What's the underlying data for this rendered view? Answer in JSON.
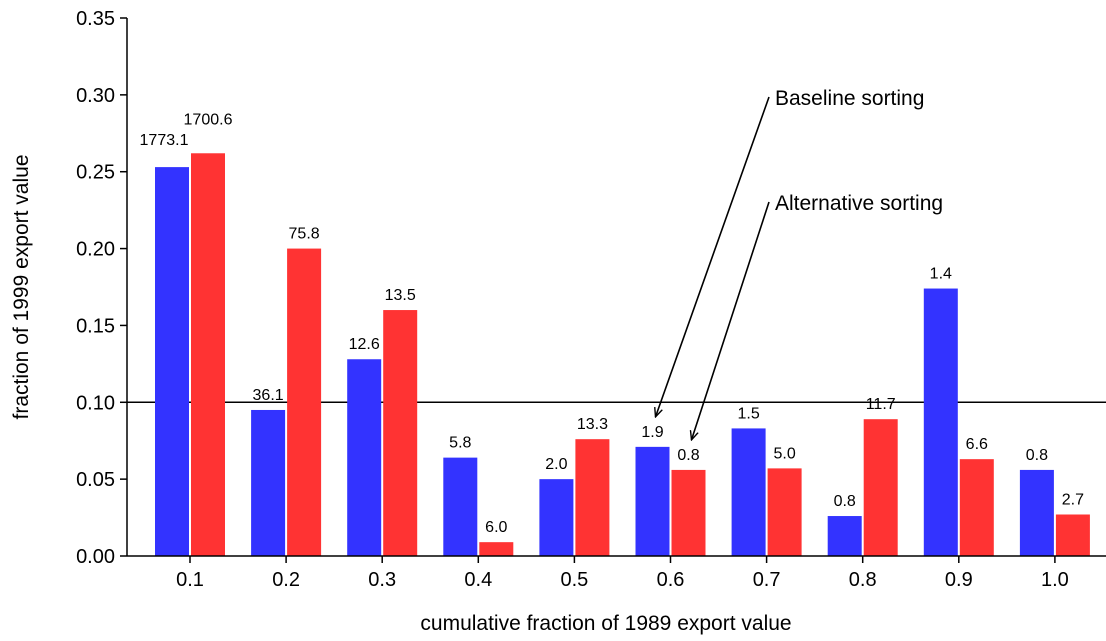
{
  "chart_data": {
    "type": "bar",
    "xlabel": "cumulative fraction of 1989 export value",
    "ylabel": "fraction of 1999 export value",
    "ylim": [
      0,
      0.35
    ],
    "yticks": [
      "0.00",
      "0.05",
      "0.10",
      "0.15",
      "0.20",
      "0.25",
      "0.30",
      "0.35"
    ],
    "categories": [
      "0.1",
      "0.2",
      "0.3",
      "0.4",
      "0.5",
      "0.6",
      "0.7",
      "0.8",
      "0.9",
      "1.0"
    ],
    "reference_line": 0.1,
    "series": [
      {
        "color": "#3333ff",
        "values": [
          0.253,
          0.095,
          0.128,
          0.064,
          0.05,
          0.071,
          0.083,
          0.026,
          0.174,
          0.056
        ],
        "labels": [
          "1773.1",
          "36.1",
          "12.6",
          "5.8",
          "2.0",
          "1.9",
          "1.5",
          "0.8",
          "1.4",
          "0.8"
        ]
      },
      {
        "color": "#ff3333",
        "values": [
          0.262,
          0.2,
          0.16,
          0.009,
          0.076,
          0.056,
          0.057,
          0.089,
          0.063,
          0.027
        ],
        "labels": [
          "1700.6",
          "75.8",
          "13.5",
          "6.0",
          "13.3",
          "0.8",
          "5.0",
          "11.7",
          "6.6",
          "2.7"
        ]
      }
    ],
    "annotations": [
      {
        "text": "Baseline sorting",
        "series_index": 0,
        "category_index": 5
      },
      {
        "text": "Alternative sorting",
        "series_index": 1,
        "category_index": 5
      }
    ]
  }
}
